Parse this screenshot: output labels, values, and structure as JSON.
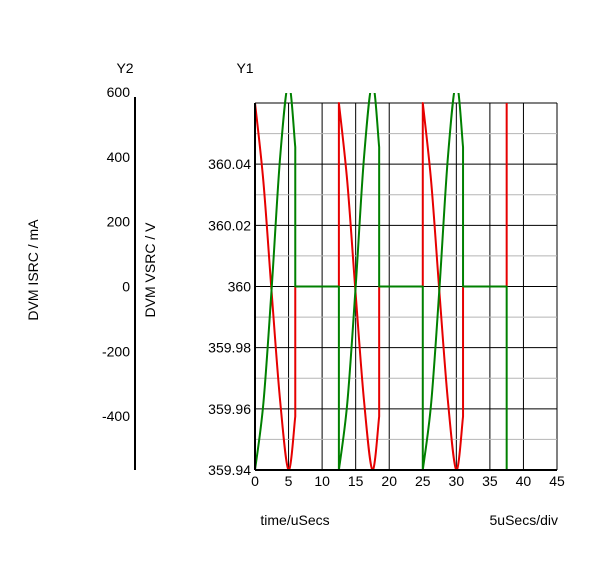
{
  "chart_data": {
    "type": "line",
    "xlabel": "time/uSecs",
    "x_scale_label": "5uSecs/div",
    "y1_axis_title": "Y1",
    "y2_axis_title": "Y2",
    "y1_label": "DVM VSRC / V",
    "y2_label": "DVM ISRC / mA",
    "xlim": [
      0,
      45
    ],
    "y1lim": [
      359.94,
      360.06
    ],
    "y2lim": [
      -566,
      566
    ],
    "x_ticks": [
      "0",
      "5",
      "10",
      "15",
      "20",
      "25",
      "30",
      "35",
      "40",
      "45"
    ],
    "y1_ticks": [
      "359.94",
      "359.96",
      "359.98",
      "360",
      "360.02",
      "360.04"
    ],
    "y2_ticks": [
      "-400",
      "-200",
      "0",
      "200",
      "400",
      "600"
    ],
    "grid": true,
    "series": [
      {
        "axis": "y1",
        "color": "#e60000",
        "values": [
          [
            0.0,
            360.06
          ],
          [
            1.25,
            360.0343
          ],
          [
            2.5,
            359.9975
          ],
          [
            3.75,
            359.9625
          ],
          [
            5.0,
            359.94
          ],
          [
            6.0,
            359.9575
          ],
          [
            6.0,
            360.0
          ],
          [
            12.5,
            360.0
          ],
          [
            12.5,
            360.06
          ],
          [
            13.75,
            360.0343
          ],
          [
            15.0,
            359.9975
          ],
          [
            16.25,
            359.9625
          ],
          [
            17.5,
            359.94
          ],
          [
            18.5,
            359.9575
          ],
          [
            18.5,
            360.0
          ],
          [
            25.0,
            360.0
          ],
          [
            25.0,
            360.06
          ],
          [
            26.25,
            360.0343
          ],
          [
            27.5,
            359.9975
          ],
          [
            28.75,
            359.9625
          ],
          [
            30.0,
            359.94
          ],
          [
            31.0,
            359.9575
          ],
          [
            31.0,
            360.0
          ],
          [
            37.5,
            360.0
          ],
          [
            37.5,
            360.06
          ]
        ]
      },
      {
        "axis": "y2",
        "color": "#008000",
        "values": [
          [
            0.0,
            -566
          ],
          [
            1.25,
            -360
          ],
          [
            2.5,
            0
          ],
          [
            3.75,
            400
          ],
          [
            5.0,
            627
          ],
          [
            6.0,
            430
          ],
          [
            6.0,
            0
          ],
          [
            12.5,
            0
          ],
          [
            12.5,
            -566
          ],
          [
            13.75,
            -360
          ],
          [
            15.0,
            0
          ],
          [
            16.25,
            400
          ],
          [
            17.5,
            627
          ],
          [
            18.5,
            430
          ],
          [
            18.5,
            0
          ],
          [
            25.0,
            0
          ],
          [
            25.0,
            -566
          ],
          [
            26.25,
            -360
          ],
          [
            27.5,
            0
          ],
          [
            28.75,
            400
          ],
          [
            30.0,
            627
          ],
          [
            31.0,
            430
          ],
          [
            31.0,
            0
          ],
          [
            37.5,
            0
          ],
          [
            37.5,
            -566
          ]
        ]
      }
    ]
  }
}
